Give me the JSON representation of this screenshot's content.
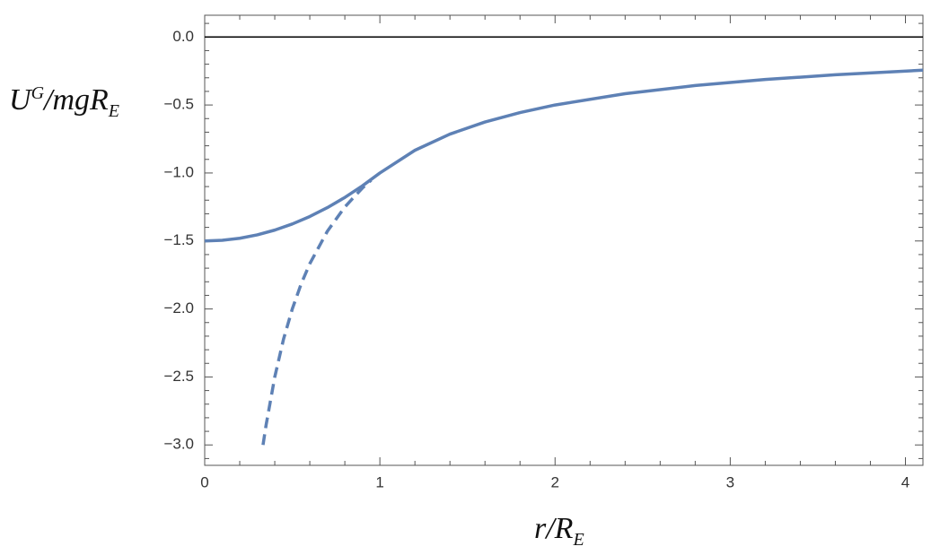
{
  "chart_data": {
    "type": "line",
    "y_label": [
      "U",
      "G",
      "/mgR",
      "E"
    ],
    "x_label": [
      "r/R",
      "E"
    ],
    "xlim": [
      0,
      4.1
    ],
    "ylim": [
      -3.15,
      0.16
    ],
    "xticks": [
      0,
      1,
      2,
      3,
      4
    ],
    "yticks": [
      {
        "value": 0,
        "label": "0.0"
      },
      {
        "value": -0.5,
        "label": "−0.5"
      },
      {
        "value": -1,
        "label": "−1.0"
      },
      {
        "value": -1.5,
        "label": "−1.5"
      },
      {
        "value": -2,
        "label": "−2.0"
      },
      {
        "value": -2.5,
        "label": "−2.5"
      },
      {
        "value": -3,
        "label": "−3.0"
      }
    ],
    "x_minor_ticks": [
      0.2,
      0.4,
      0.6,
      0.8,
      1.2,
      1.4,
      1.6,
      1.8,
      2.2,
      2.4,
      2.6,
      2.8,
      3.2,
      3.4,
      3.6,
      3.8
    ],
    "y_minor_ticks": [
      0.1,
      -0.1,
      -0.2,
      -0.3,
      -0.4,
      -0.6,
      -0.7,
      -0.8,
      -0.9,
      -1.1,
      -1.2,
      -1.3,
      -1.4,
      -1.6,
      -1.7,
      -1.8,
      -1.9,
      -2.1,
      -2.2,
      -2.3,
      -2.4,
      -2.6,
      -2.7,
      -2.8,
      -2.9,
      -3.1
    ],
    "reference_line": 0,
    "series": [
      {
        "color": "#5e81b5",
        "dashed": false,
        "x": [
          0,
          0.1,
          0.2,
          0.3,
          0.4,
          0.5,
          0.6,
          0.7,
          0.8,
          0.9,
          1.0,
          1.2,
          1.4,
          1.6,
          1.8,
          2.0,
          2.4,
          2.8,
          3.2,
          3.6,
          4.1
        ],
        "values": [
          -1.5,
          -1.495,
          -1.48,
          -1.455,
          -1.42,
          -1.375,
          -1.32,
          -1.255,
          -1.18,
          -1.095,
          -1.0,
          -0.833,
          -0.714,
          -0.625,
          -0.556,
          -0.5,
          -0.417,
          -0.357,
          -0.3125,
          -0.278,
          -0.244
        ]
      },
      {
        "color": "#5e81b5",
        "dashed": true,
        "x": [
          0.333,
          0.35,
          0.4,
          0.45,
          0.5,
          0.55,
          0.6,
          0.7,
          0.8,
          0.9,
          0.95
        ],
        "values": [
          -3.0,
          -2.857,
          -2.5,
          -2.222,
          -2.0,
          -1.818,
          -1.667,
          -1.429,
          -1.25,
          -1.111,
          -1.053
        ]
      }
    ]
  }
}
